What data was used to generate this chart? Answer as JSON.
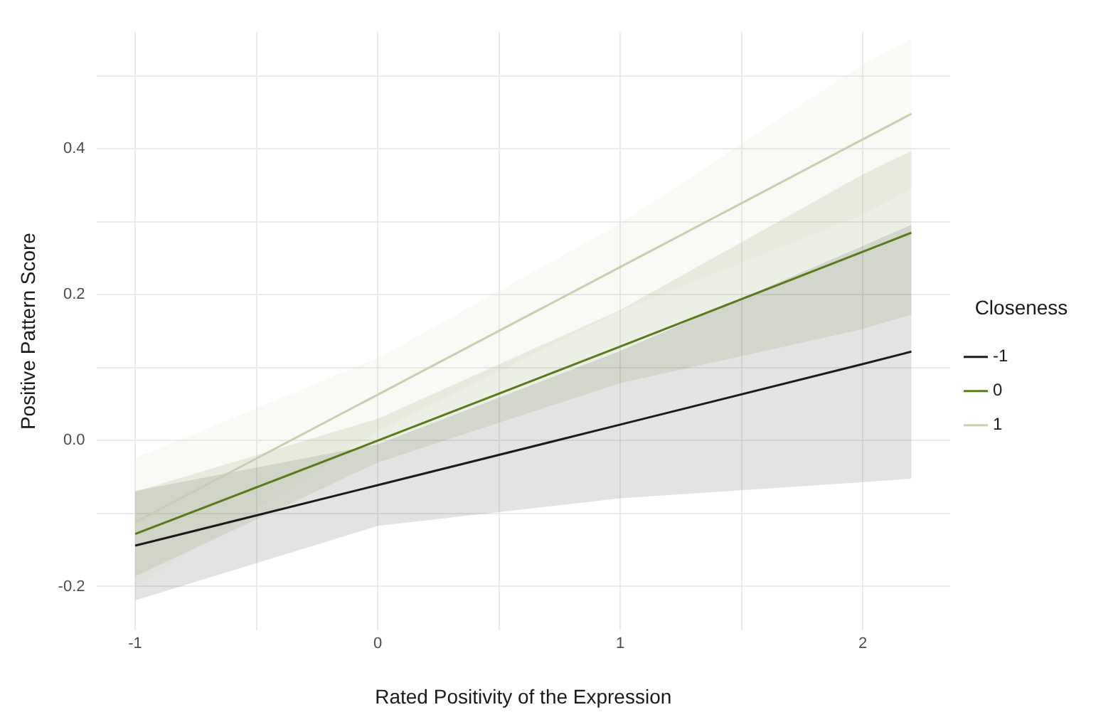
{
  "chart_data": {
    "type": "line",
    "xlabel": "Rated Positivity of the Expression",
    "ylabel": "Positive Pattern Score",
    "legend_title": "Closeness",
    "legend": "right",
    "grid": true,
    "xlim": [
      -1.16,
      2.36
    ],
    "xticks": [
      -1,
      {
        "value": -0.5,
        "label": null
      },
      0,
      {
        "value": 0.5,
        "label": null
      },
      1,
      {
        "value": 1.5,
        "label": null
      },
      2
    ],
    "ylim": [
      -0.26,
      0.56
    ],
    "yticks": [
      {
        "value": -0.2,
        "label": "-0.2"
      },
      {
        "value": -0.1,
        "label": null
      },
      {
        "value": 0,
        "label": "0.0"
      },
      {
        "value": 0.1,
        "label": null
      },
      {
        "value": 0.2,
        "label": "0.2"
      },
      {
        "value": 0.3,
        "label": null
      },
      {
        "value": 0.4,
        "label": "0.4"
      },
      {
        "value": 0.5,
        "label": null
      }
    ],
    "series": [
      {
        "name": "-1",
        "color": "#1a1a1a",
        "x": [
          -1,
          0,
          1,
          2,
          2.2
        ],
        "values": [
          -0.144,
          -0.061,
          0.022,
          0.105,
          0.122
        ],
        "lower": [
          -0.219,
          -0.117,
          -0.079,
          -0.057,
          -0.052
        ],
        "upper": [
          -0.069,
          -0.005,
          0.123,
          0.267,
          0.296
        ]
      },
      {
        "name": "0",
        "color": "#5a7a1e",
        "x": [
          -1,
          0,
          1,
          2,
          2.2
        ],
        "values": [
          -0.128,
          0,
          0.129,
          0.259,
          0.285
        ],
        "lower": [
          -0.186,
          -0.03,
          0.079,
          0.153,
          0.173
        ],
        "upper": [
          -0.07,
          0.03,
          0.179,
          0.365,
          0.397
        ]
      },
      {
        "name": "1",
        "color": "#cfcbb0",
        "x": [
          -1,
          0,
          1,
          2,
          2.2
        ],
        "values": [
          -0.112,
          0.063,
          0.238,
          0.413,
          0.448
        ],
        "lower": [
          -0.2,
          0.013,
          0.178,
          0.31,
          0.345
        ],
        "upper": [
          -0.024,
          0.113,
          0.298,
          0.516,
          0.551
        ]
      }
    ]
  }
}
